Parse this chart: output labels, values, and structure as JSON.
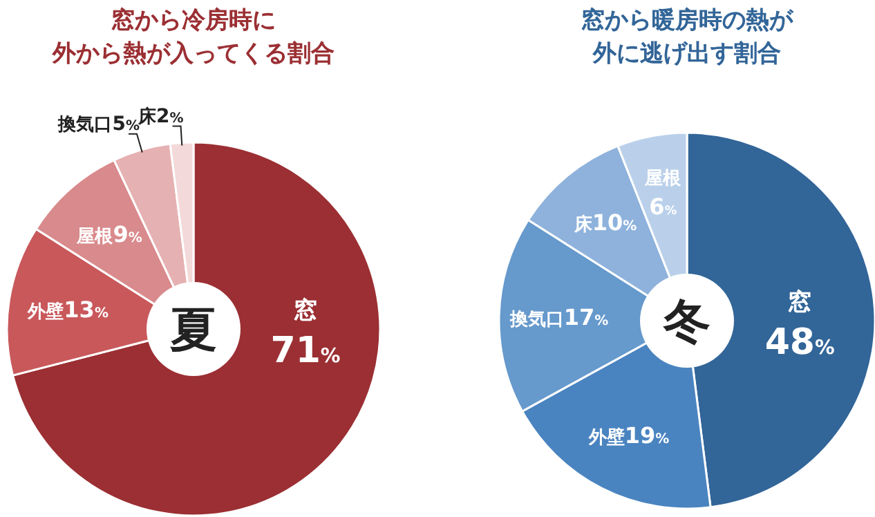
{
  "chart_data": [
    {
      "type": "donut",
      "title": "窓から冷房時に",
      "subtitle": "外から熱が入ってくる割合",
      "categories": [
        "窓",
        "外壁",
        "屋根",
        "換気口",
        "床"
      ],
      "values": [
        71,
        13,
        9,
        5,
        2
      ],
      "value_labels": [
        "71%",
        "13%",
        "9%",
        "5%",
        "2%"
      ],
      "colors": [
        "#9b2f33",
        "#c9585b",
        "#d98a8c",
        "#e6b1b2",
        "#f3d9d9"
      ],
      "annotations": [
        "夏"
      ]
    },
    {
      "type": "donut",
      "title": "窓から暖房時の熱が",
      "subtitle": "外に逃げ出す割合",
      "categories": [
        "窓",
        "外壁",
        "換気口",
        "床",
        "屋根"
      ],
      "values": [
        48,
        19,
        17,
        10,
        6
      ],
      "value_labels": [
        "48%",
        "19%",
        "17%",
        "10%",
        "6%"
      ],
      "colors": [
        "#326598",
        "#4a84c0",
        "#6699cc",
        "#8eb2dc",
        "#bad0ea"
      ],
      "annotations": [
        "冬"
      ]
    }
  ]
}
